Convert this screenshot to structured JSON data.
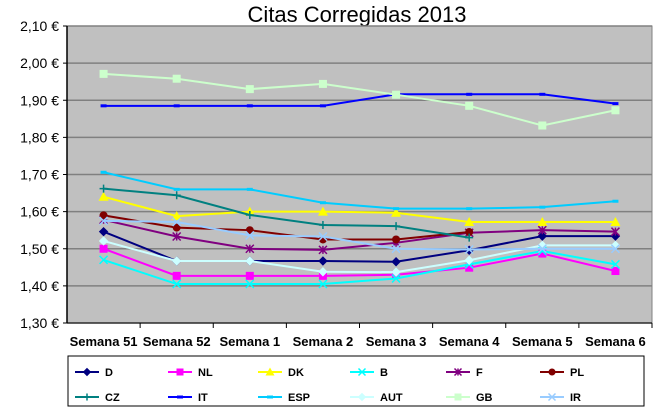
{
  "chart_data": {
    "type": "line",
    "title": "Citas Corregidas 2013",
    "xlabel": "",
    "ylabel": "",
    "categories": [
      "Semana 51",
      "Semana 52",
      "Semana 1",
      "Semana 2",
      "Semana 3",
      "Semana 4",
      "Semana 5",
      "Semana 6"
    ],
    "ylim": [
      1.3,
      2.1
    ],
    "yticks": [
      "1,30 €",
      "1,40 €",
      "1,50 €",
      "1,60 €",
      "1,70 €",
      "1,80 €",
      "1,90 €",
      "2,00 €",
      "2,10 €"
    ],
    "grid": true,
    "legend": "bottom",
    "background": "#c0c0c0",
    "series": [
      {
        "name": "D",
        "color": "#000080",
        "marker": "diamond",
        "values": [
          1.546,
          1.467,
          1.467,
          1.467,
          1.465,
          1.496,
          1.534,
          1.534
        ]
      },
      {
        "name": "NL",
        "color": "#ff00ff",
        "marker": "square",
        "values": [
          1.5,
          1.427,
          1.427,
          1.427,
          1.43,
          1.449,
          1.487,
          1.44
        ]
      },
      {
        "name": "DK",
        "color": "#ffff00",
        "marker": "triangle",
        "values": [
          1.64,
          1.588,
          1.6,
          1.6,
          1.597,
          1.572,
          1.572,
          1.572
        ]
      },
      {
        "name": "B",
        "color": "#00ffff",
        "marker": "x",
        "values": [
          1.47,
          1.405,
          1.405,
          1.405,
          1.42,
          1.458,
          1.494,
          1.458
        ]
      },
      {
        "name": "F",
        "color": "#800080",
        "marker": "star",
        "values": [
          1.578,
          1.533,
          1.5,
          1.497,
          1.516,
          1.543,
          1.55,
          1.546
        ]
      },
      {
        "name": "PL",
        "color": "#800000",
        "marker": "circle",
        "values": [
          1.59,
          1.557,
          1.55,
          1.525,
          1.525,
          1.545,
          null,
          null
        ]
      },
      {
        "name": "CZ",
        "color": "#008080",
        "marker": "plus",
        "values": [
          1.662,
          1.644,
          1.591,
          1.564,
          1.561,
          1.53,
          null,
          null
        ]
      },
      {
        "name": "IT",
        "color": "#0000ff",
        "marker": "dash",
        "values": [
          1.885,
          1.885,
          1.885,
          1.885,
          1.916,
          1.916,
          1.916,
          1.891
        ]
      },
      {
        "name": "ESP",
        "color": "#00ccff",
        "marker": "dash",
        "values": [
          1.706,
          1.66,
          1.66,
          1.624,
          1.608,
          1.608,
          1.612,
          1.628
        ]
      },
      {
        "name": "AUT",
        "color": "#ccffff",
        "marker": "diamond",
        "values": [
          1.521,
          1.467,
          1.467,
          1.438,
          1.437,
          1.469,
          1.509,
          1.509
        ]
      },
      {
        "name": "GB",
        "color": "#ccffcc",
        "marker": "square",
        "values": [
          1.971,
          1.958,
          1.93,
          1.944,
          1.915,
          1.885,
          1.832,
          1.873
        ]
      },
      {
        "name": "IR",
        "color": "#99ccff",
        "marker": "x",
        "values": [
          1.575,
          1.572,
          1.536,
          1.533,
          1.5,
          1.498,
          1.5,
          1.5
        ]
      }
    ]
  }
}
